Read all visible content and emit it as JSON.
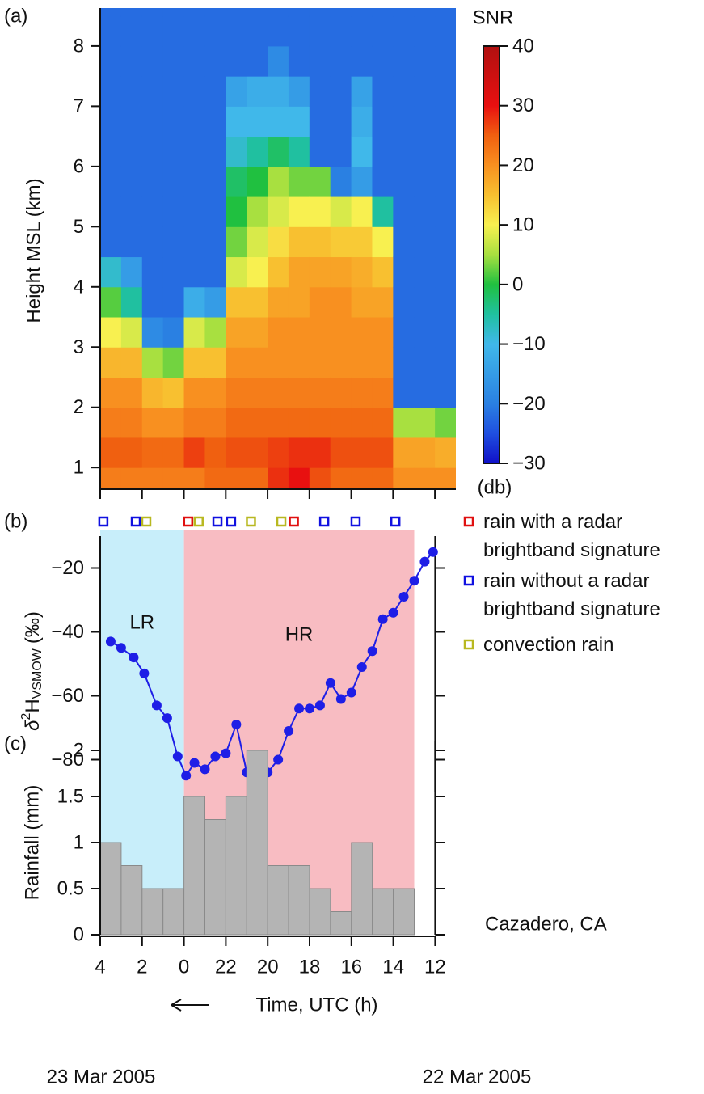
{
  "chart_data": [
    {
      "type": "heatmap",
      "panel_label": "(a)",
      "ylabel": "Height MSL (km)",
      "xlim": [
        4,
        -13
      ],
      "ylim": [
        0.64,
        8.63
      ],
      "yticks": [
        1,
        2,
        3,
        4,
        5,
        6,
        7,
        8
      ],
      "xticks": [
        4,
        2,
        0,
        -2,
        -4,
        -6,
        -8,
        -10,
        -12
      ],
      "x_edges": [
        4,
        3,
        2,
        1,
        0,
        -1,
        -2,
        -3,
        -4,
        -5,
        -6,
        -7,
        -8,
        -9,
        -10,
        -11,
        -12,
        -13
      ],
      "y_edges": [
        0.5,
        1,
        1.5,
        2,
        2.5,
        3,
        3.5,
        4,
        4.5,
        5,
        5.5,
        6,
        6.5,
        7,
        7.5,
        8,
        8.5,
        9
      ],
      "z": [
        [
          22,
          25,
          22,
          20,
          16,
          10,
          2,
          -8,
          -22,
          -22,
          -22,
          -22,
          -22,
          -22,
          -22,
          -22,
          -22
        ],
        [
          22,
          25,
          22,
          20,
          16,
          8,
          -5,
          -15,
          -22,
          -22,
          -22,
          -22,
          -22,
          -22,
          -22,
          -22,
          -22
        ],
        [
          22,
          24,
          20,
          16,
          5,
          -18,
          -22,
          -22,
          -22,
          -22,
          -22,
          -22,
          -22,
          -22,
          -22,
          -22,
          -22
        ],
        [
          22,
          24,
          20,
          15,
          3,
          -20,
          -22,
          -22,
          -22,
          -22,
          -22,
          -22,
          -22,
          -22,
          -22,
          -22,
          -22
        ],
        [
          22,
          27,
          22,
          20,
          15,
          8,
          -12,
          -22,
          -22,
          -22,
          -22,
          -22,
          -22,
          -22,
          -22,
          -22,
          -22
        ],
        [
          24,
          25,
          22,
          20,
          15,
          5,
          -15,
          -22,
          -22,
          -22,
          -22,
          -22,
          -22,
          -22,
          -22,
          -22,
          -22
        ],
        [
          24,
          26,
          24,
          22,
          20,
          18,
          15,
          8,
          3,
          0,
          -2,
          -8,
          -10,
          -14,
          -22,
          -22,
          -22
        ],
        [
          24,
          26,
          24,
          22,
          20,
          18,
          15,
          10,
          8,
          5,
          0,
          -5,
          -10,
          -12,
          -22,
          -22,
          -22
        ],
        [
          28,
          27,
          24,
          22,
          20,
          20,
          18,
          15,
          12,
          8,
          5,
          -2,
          -10,
          -12,
          -18,
          -22,
          -22
        ],
        [
          30,
          28,
          24,
          22,
          20,
          20,
          18,
          18,
          15,
          10,
          3,
          -5,
          -10,
          -15,
          -22,
          -22,
          -22
        ],
        [
          26,
          28,
          24,
          22,
          20,
          20,
          20,
          18,
          15,
          10,
          3,
          -22,
          -22,
          -22,
          -22,
          -22,
          -22
        ],
        [
          24,
          26,
          24,
          22,
          20,
          20,
          20,
          18,
          14,
          8,
          -20,
          -22,
          -22,
          -22,
          -22,
          -22,
          -22
        ],
        [
          24,
          26,
          24,
          22,
          20,
          20,
          18,
          17,
          14,
          10,
          -15,
          -10,
          -12,
          -14,
          -22,
          -22,
          -22
        ],
        [
          24,
          26,
          24,
          22,
          20,
          20,
          18,
          15,
          10,
          -5,
          -22,
          -22,
          -22,
          -22,
          -22,
          -22,
          -22
        ],
        [
          20,
          18,
          5,
          -22,
          -22,
          -22,
          -22,
          -22,
          -22,
          -22,
          -22,
          -22,
          -22,
          -22,
          -22,
          -22,
          -22
        ],
        [
          20,
          18,
          5,
          -22,
          -22,
          -22,
          -22,
          -22,
          -22,
          -22,
          -22,
          -22,
          -22,
          -22,
          -22,
          -22,
          -22
        ],
        [
          20,
          17,
          3,
          -22,
          -22,
          -22,
          -22,
          -22,
          -22,
          -22,
          -22,
          -22,
          -22,
          -22,
          -22,
          -22,
          -22
        ]
      ],
      "colorbar": {
        "label": "SNR",
        "unit_label": "(db)",
        "lim": [
          -30,
          40
        ],
        "ticks": [
          {
            "value": -30,
            "label": "−30"
          },
          {
            "value": -20,
            "label": "−20"
          },
          {
            "value": -10,
            "label": "−10"
          },
          0,
          10,
          20,
          30,
          40
        ],
        "stops": [
          {
            "value": -30,
            "color": "#1010c8"
          },
          {
            "value": -25,
            "color": "#1f4fe0"
          },
          {
            "value": -20,
            "color": "#2a80e2"
          },
          {
            "value": -10,
            "color": "#40b8ea"
          },
          {
            "value": -5,
            "color": "#20c0a0"
          },
          {
            "value": 0,
            "color": "#20c040"
          },
          {
            "value": 5,
            "color": "#a8e040"
          },
          {
            "value": 10,
            "color": "#f8f050"
          },
          {
            "value": 15,
            "color": "#f8c030"
          },
          {
            "value": 20,
            "color": "#f89020"
          },
          {
            "value": 25,
            "color": "#f06010"
          },
          {
            "value": 30,
            "color": "#e81010"
          },
          {
            "value": 40,
            "color": "#b01010"
          }
        ]
      }
    },
    {
      "type": "line",
      "panel_label": "(b)",
      "ylabel": {
        "base": "δ",
        "sup": "2",
        "main": "H",
        "sub": "VSMOW",
        "unit": "(‰)"
      },
      "xlim": [
        4,
        -12
      ],
      "ylim": [
        -90,
        -10
      ],
      "yticks": [
        {
          "value": -20,
          "label": "−20"
        },
        {
          "value": -40,
          "label": "−40"
        },
        {
          "value": -60,
          "label": "−60"
        },
        {
          "value": -80,
          "label": "−80"
        }
      ],
      "x": [
        3.5,
        3,
        2.4,
        1.9,
        1.3,
        0.8,
        0.3,
        -0.1,
        -0.5,
        -1,
        -1.5,
        -2,
        -2.5,
        -3,
        -3.5,
        -4,
        -4.5,
        -5,
        -5.5,
        -6,
        -6.5,
        -7,
        -7.5,
        -8,
        -8.5,
        -9,
        -9.5,
        -10,
        -10.5,
        -11,
        -11.5,
        -11.9
      ],
      "values": [
        -43,
        -45,
        -48,
        -53,
        -63,
        -67,
        -79,
        -85,
        -81,
        -83,
        -79,
        -78,
        -69,
        -84,
        -83,
        -84,
        -80,
        -71,
        -64,
        -64,
        -63,
        -56,
        -61,
        -59,
        -51,
        -46,
        -36,
        -34,
        -29,
        -24,
        -18,
        -15
      ],
      "color": "#1e1ee6",
      "regions": [
        {
          "label": "LR",
          "x": [
            4,
            0
          ],
          "color": "#c8eefa"
        },
        {
          "label": "HR",
          "x": [
            0,
            -11
          ],
          "color": "#f8bcc2"
        }
      ],
      "markers": [
        {
          "name": "rain with a radar brightband signature",
          "color": "#e01010",
          "x": [
            -0.2,
            -5.25
          ]
        },
        {
          "name": "rain without a radar brightband signature",
          "color": "#1010e0",
          "x": [
            3.85,
            2.3,
            -1.6,
            -2.25,
            -6.7,
            -8.2,
            -10.1
          ]
        },
        {
          "name": "convection rain",
          "color": "#b8b820",
          "x": [
            1.8,
            -0.7,
            -3.2,
            -4.65
          ]
        }
      ]
    },
    {
      "type": "histogram",
      "panel_label": "(c)",
      "ylabel": "Rainfall (mm)",
      "xlim": [
        4,
        -12
      ],
      "ylim": [
        0,
        2.1
      ],
      "yticks": [
        0,
        0.5,
        1,
        1.5,
        2
      ],
      "xticks": [
        4,
        2,
        0,
        {
          "value": -2,
          "label": "22"
        },
        {
          "value": -4,
          "label": "20"
        },
        {
          "value": -6,
          "label": "18"
        },
        {
          "value": -8,
          "label": "16"
        },
        {
          "value": -10,
          "label": "14"
        },
        {
          "value": -12,
          "label": "12"
        }
      ],
      "bins": [
        4,
        3,
        2,
        1,
        0,
        -1,
        -2,
        -3,
        -4,
        -5,
        -6,
        -7,
        -8,
        -9,
        -10,
        -11
      ],
      "values": [
        1,
        0.75,
        0.5,
        0.5,
        1.5,
        1.25,
        1.5,
        2,
        0.75,
        0.75,
        0.5,
        0.25,
        1,
        0.5,
        0.5
      ],
      "color": "#b4b4b4",
      "xlabel": "Time, UTC (h)",
      "annotation": "Cazadero, CA",
      "dates": [
        "23 Mar 2005",
        "22 Mar 2005"
      ]
    }
  ]
}
